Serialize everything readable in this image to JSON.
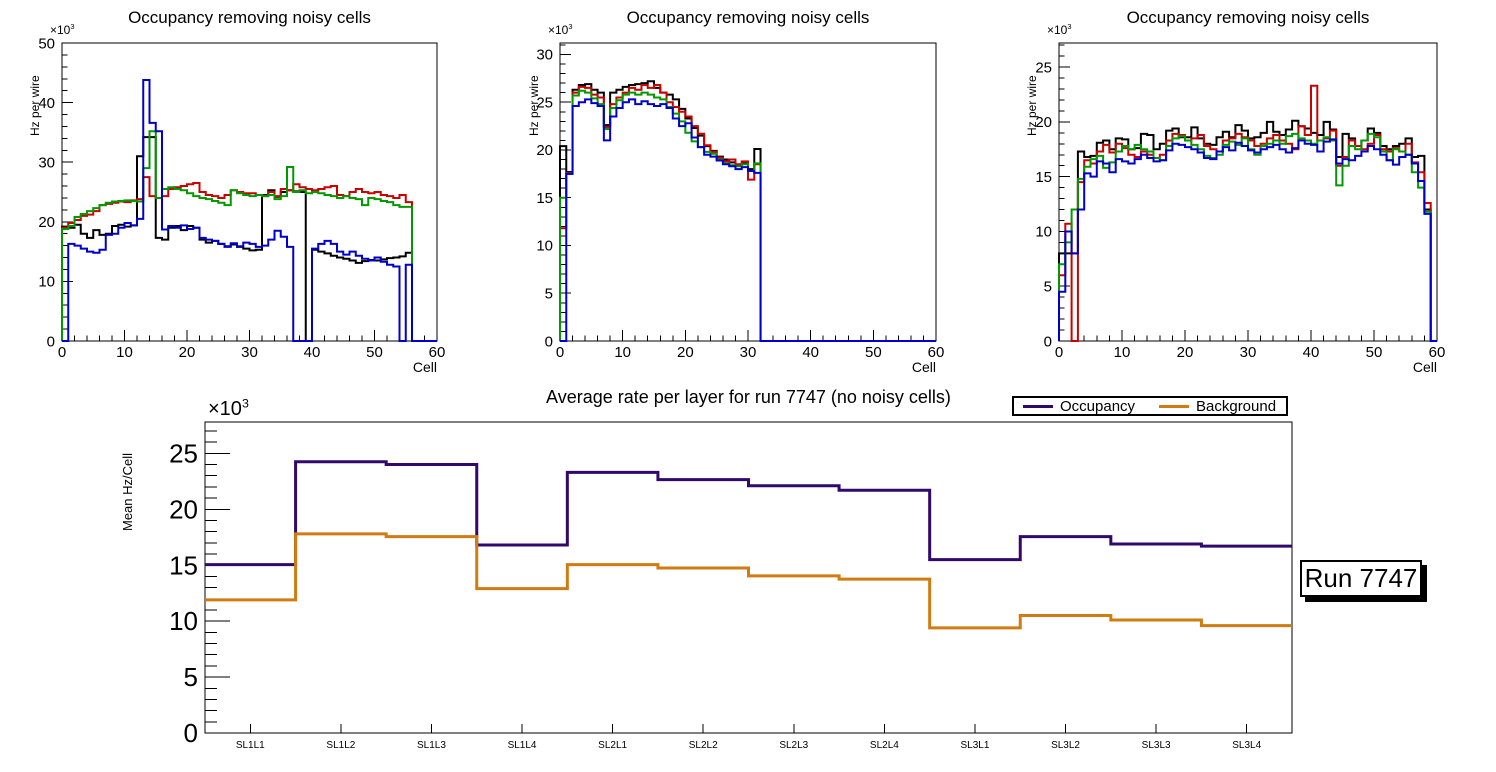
{
  "canvas": {
    "background": "#ffffff"
  },
  "annotations": {
    "run_label": "Run 7747"
  },
  "chart_data": [
    {
      "type": "bar",
      "subtype": "step-histogram-outline",
      "title": "Occupancy removing noisy cells",
      "xlabel": "Cell",
      "ylabel": "Hz per wire",
      "exponent": {
        "base": "×10",
        "sup": "3"
      },
      "xlim": [
        0,
        60
      ],
      "ylim": [
        0,
        50
      ],
      "x_major_step": 10,
      "x_minor_step": 2,
      "y_major_step": 10,
      "y_minor_step": 2,
      "value_unit": "×10³ Hz per wire",
      "grid": "off",
      "legend_position": "none",
      "series": [
        {
          "name": "black",
          "color": "#000000",
          "values": [
            19.2,
            19.0,
            19.5,
            18.0,
            17.3,
            18.6,
            17.8,
            18.0,
            19.3,
            19.5,
            19.2,
            19.4,
            31.0,
            34.2,
            34.2,
            17.3,
            17.0,
            19.0,
            19.3,
            18.6,
            19.3,
            19.0,
            17.0,
            16.5,
            16.8,
            16.3,
            15.9,
            16.2,
            15.8,
            15.5,
            15.2,
            15.3,
            24.5,
            25.3,
            24.2,
            25.0,
            25.3,
            25.1,
            25.0,
            0,
            15.3,
            15.0,
            14.7,
            14.3,
            14.0,
            13.8,
            13.5,
            13.1,
            13.4,
            13.6,
            13.5,
            13.7,
            13.9,
            14.0,
            14.2,
            14.8,
            0,
            0,
            0,
            0
          ]
        },
        {
          "name": "red",
          "color": "#cc0000",
          "values": [
            19.0,
            19.8,
            20.3,
            21.0,
            21.2,
            21.8,
            22.8,
            23.0,
            23.2,
            23.4,
            23.3,
            23.6,
            23.8,
            27.5,
            24.3,
            24.0,
            24.3,
            25.5,
            25.8,
            26.0,
            26.3,
            26.5,
            25.0,
            24.5,
            24.3,
            24.0,
            24.5,
            25.3,
            25.0,
            24.8,
            24.8,
            24.5,
            24.3,
            25.0,
            24.3,
            25.5,
            25.3,
            26.3,
            25.8,
            25.5,
            25.3,
            25.5,
            25.8,
            26.0,
            24.5,
            24.3,
            25.0,
            25.5,
            25.0,
            24.8,
            25.0,
            24.5,
            24.3,
            24.0,
            24.5,
            23.3,
            0,
            0,
            0,
            0
          ]
        },
        {
          "name": "green",
          "color": "#009900",
          "values": [
            18.8,
            19.3,
            20.8,
            21.3,
            21.8,
            22.3,
            22.8,
            23.2,
            23.4,
            23.5,
            23.6,
            23.5,
            23.4,
            29.0,
            35.2,
            24.0,
            25.5,
            25.8,
            25.5,
            25.3,
            24.8,
            24.3,
            24.0,
            23.8,
            23.5,
            23.2,
            22.8,
            25.3,
            24.8,
            24.5,
            24.3,
            24.5,
            24.3,
            24.5,
            23.8,
            24.3,
            29.2,
            25.0,
            25.3,
            24.8,
            25.0,
            24.8,
            24.5,
            24.3,
            24.0,
            24.3,
            24.0,
            23.8,
            22.8,
            24.0,
            23.8,
            23.5,
            23.3,
            22.8,
            22.5,
            22.5,
            0,
            0,
            0,
            0
          ]
        },
        {
          "name": "blue",
          "color": "#0000cc",
          "values": [
            0,
            16.3,
            16.0,
            15.5,
            15.0,
            14.8,
            15.3,
            17.8,
            18.0,
            19.0,
            19.8,
            19.4,
            20.5,
            43.8,
            36.6,
            35.2,
            18.7,
            19.3,
            19.0,
            19.4,
            18.8,
            19.0,
            17.3,
            17.0,
            16.8,
            16.3,
            15.8,
            16.4,
            15.9,
            16.5,
            16.3,
            15.8,
            16.0,
            17.0,
            18.5,
            17.5,
            15.8,
            0,
            0,
            0,
            15.5,
            16.3,
            16.8,
            16.3,
            15.0,
            14.5,
            15.0,
            14.3,
            13.8,
            13.5,
            14.0,
            13.3,
            12.8,
            12.5,
            0,
            12.8,
            0,
            0,
            0,
            0
          ]
        }
      ]
    },
    {
      "type": "bar",
      "subtype": "step-histogram-outline",
      "title": "Occupancy removing noisy cells",
      "xlabel": "Cell",
      "ylabel": "Hz per wire",
      "exponent": {
        "base": "×10",
        "sup": "3"
      },
      "xlim": [
        0,
        60
      ],
      "ylim": [
        0,
        31.2
      ],
      "x_major_step": 10,
      "x_minor_step": 2,
      "y_major_step": 5,
      "y_minor_step": 1,
      "value_unit": "×10³ Hz per wire",
      "grid": "off",
      "legend_position": "none",
      "series": [
        {
          "name": "black",
          "color": "#000000",
          "values": [
            20.4,
            17.7,
            26.3,
            26.8,
            26.9,
            26.3,
            26.0,
            22.6,
            26.0,
            26.3,
            26.6,
            26.8,
            26.9,
            27.0,
            27.2,
            26.5,
            26.0,
            25.8,
            25.3,
            24.3,
            23.3,
            22.3,
            21.5,
            20.4,
            19.9,
            19.3,
            19.0,
            18.7,
            18.4,
            18.6,
            18.0,
            20.1,
            0,
            0,
            0,
            0,
            0,
            0,
            0,
            0,
            0,
            0,
            0,
            0,
            0,
            0,
            0,
            0,
            0,
            0,
            0,
            0,
            0,
            0,
            0,
            0,
            0,
            0,
            0,
            0
          ]
        },
        {
          "name": "red",
          "color": "#cc0000",
          "values": [
            11.8,
            17.6,
            26.0,
            26.6,
            26.5,
            25.8,
            25.5,
            22.4,
            24.8,
            25.5,
            26.0,
            26.5,
            26.3,
            26.8,
            26.5,
            26.8,
            26.0,
            25.0,
            24.5,
            24.0,
            23.5,
            22.5,
            21.7,
            20.5,
            19.8,
            19.2,
            18.8,
            19.0,
            18.5,
            18.8,
            16.9,
            18.5,
            0,
            0,
            0,
            0,
            0,
            0,
            0,
            0,
            0,
            0,
            0,
            0,
            0,
            0,
            0,
            0,
            0,
            0,
            0,
            0,
            0,
            0,
            0,
            0,
            0,
            0,
            0,
            0
          ]
        },
        {
          "name": "green",
          "color": "#009900",
          "values": [
            15.0,
            17.5,
            25.7,
            26.2,
            26.0,
            25.4,
            24.8,
            22.2,
            24.4,
            25.2,
            25.8,
            26.0,
            25.8,
            26.0,
            25.8,
            25.5,
            25.3,
            24.5,
            23.8,
            23.0,
            21.8,
            20.9,
            20.3,
            19.8,
            19.6,
            19.0,
            18.6,
            18.4,
            18.3,
            18.5,
            17.8,
            18.6,
            0,
            0,
            0,
            0,
            0,
            0,
            0,
            0,
            0,
            0,
            0,
            0,
            0,
            0,
            0,
            0,
            0,
            0,
            0,
            0,
            0,
            0,
            0,
            0,
            0,
            0,
            0,
            0
          ]
        },
        {
          "name": "blue",
          "color": "#0000cc",
          "values": [
            0,
            17.5,
            24.6,
            25.0,
            25.3,
            24.9,
            24.6,
            21.0,
            23.5,
            24.4,
            25.0,
            25.3,
            24.8,
            25.1,
            24.8,
            24.6,
            24.8,
            24.4,
            23.3,
            22.5,
            22.8,
            21.3,
            20.3,
            19.5,
            19.3,
            18.9,
            18.5,
            18.3,
            18.0,
            18.2,
            17.8,
            17.6,
            0,
            0,
            0,
            0,
            0,
            0,
            0,
            0,
            0,
            0,
            0,
            0,
            0,
            0,
            0,
            0,
            0,
            0,
            0,
            0,
            0,
            0,
            0,
            0,
            0,
            0,
            0,
            0
          ]
        }
      ]
    },
    {
      "type": "bar",
      "subtype": "step-histogram-outline",
      "title": "Occupancy removing noisy cells",
      "xlabel": "Cell",
      "ylabel": "Hz per wire",
      "exponent": {
        "base": "×10",
        "sup": "3"
      },
      "xlim": [
        0,
        60
      ],
      "ylim": [
        0,
        27.2
      ],
      "x_major_step": 10,
      "x_minor_step": 2,
      "y_major_step": 5,
      "y_minor_step": 1,
      "value_unit": "×10³ Hz per wire",
      "grid": "off",
      "legend_position": "none",
      "series": [
        {
          "name": "black",
          "color": "#000000",
          "values": [
            8.0,
            8.0,
            8.0,
            17.3,
            16.8,
            16.9,
            18.1,
            18.3,
            17.5,
            18.5,
            18.4,
            17.5,
            17.6,
            18.9,
            18.8,
            17.5,
            18.0,
            19.2,
            19.4,
            18.6,
            18.6,
            19.5,
            18.5,
            18.0,
            17.9,
            18.6,
            19.1,
            18.6,
            19.7,
            19.2,
            18.5,
            18.6,
            19.0,
            20.0,
            19.1,
            18.8,
            19.3,
            20.1,
            19.6,
            19.4,
            19.0,
            18.8,
            20.0,
            19.3,
            16.8,
            18.9,
            18.5,
            17.8,
            18.3,
            19.4,
            19.0,
            17.8,
            17.5,
            17.8,
            18.0,
            18.5,
            16.8,
            16.9,
            12.0,
            0
          ]
        },
        {
          "name": "red",
          "color": "#cc0000",
          "values": [
            6.0,
            10.7,
            0,
            14.5,
            16.5,
            16.2,
            17.3,
            17.9,
            17.2,
            18.0,
            17.6,
            17.0,
            16.8,
            17.3,
            17.0,
            16.7,
            17.0,
            18.3,
            18.9,
            18.8,
            18.3,
            18.5,
            18.8,
            17.8,
            17.5,
            17.3,
            18.3,
            18.5,
            18.9,
            18.6,
            18.3,
            17.8,
            18.0,
            18.5,
            18.8,
            18.3,
            18.0,
            17.5,
            19.6,
            18.8,
            23.3,
            18.3,
            18.5,
            19.2,
            16.0,
            16.8,
            18.3,
            17.8,
            17.5,
            18.0,
            18.8,
            17.5,
            17.3,
            17.6,
            17.3,
            18.0,
            16.3,
            15.4,
            12.6,
            0
          ]
        },
        {
          "name": "green",
          "color": "#009900",
          "values": [
            7.0,
            9.0,
            12.0,
            14.8,
            15.9,
            16.6,
            16.9,
            15.8,
            16.3,
            17.3,
            17.8,
            17.5,
            17.9,
            17.5,
            17.3,
            16.7,
            16.5,
            17.8,
            18.5,
            18.7,
            18.3,
            17.9,
            17.5,
            16.9,
            16.7,
            17.0,
            17.9,
            18.2,
            17.9,
            18.5,
            17.5,
            17.0,
            17.8,
            18.0,
            18.3,
            18.0,
            18.7,
            18.9,
            18.5,
            18.3,
            18.0,
            18.3,
            18.6,
            18.3,
            14.2,
            16.0,
            17.8,
            17.5,
            18.3,
            18.9,
            18.6,
            17.3,
            16.5,
            17.5,
            17.3,
            17.0,
            15.4,
            14.0,
            11.8,
            0
          ]
        },
        {
          "name": "blue",
          "color": "#0000cc",
          "values": [
            4.5,
            10.0,
            8.0,
            12.0,
            15.3,
            15.0,
            16.4,
            16.2,
            15.4,
            16.6,
            16.4,
            16.2,
            16.6,
            17.0,
            16.7,
            16.4,
            16.5,
            17.4,
            18.0,
            17.9,
            17.7,
            17.5,
            17.2,
            16.7,
            16.6,
            17.3,
            17.7,
            17.4,
            18.1,
            17.8,
            17.4,
            17.2,
            17.5,
            17.7,
            17.9,
            17.5,
            17.2,
            17.6,
            18.3,
            18.0,
            17.9,
            17.3,
            18.2,
            18.4,
            16.2,
            16.6,
            16.5,
            16.9,
            17.3,
            17.8,
            17.5,
            17.0,
            16.5,
            16.1,
            16.8,
            17.0,
            16.2,
            14.6,
            11.6,
            0
          ]
        }
      ]
    },
    {
      "type": "line",
      "subtype": "category-step",
      "title": "Average rate per layer for run 7747 (no noisy cells)",
      "xlabel": "",
      "ylabel": "Mean Hz/Cell",
      "exponent": {
        "base": "×10",
        "sup": "3"
      },
      "categories": [
        "SL1L1",
        "SL1L2",
        "SL1L3",
        "SL1L4",
        "SL2L1",
        "SL2L2",
        "SL2L3",
        "SL2L4",
        "SL3L1",
        "SL3L2",
        "SL3L3",
        "SL3L4"
      ],
      "ylim": [
        0,
        27.8
      ],
      "y_major_step": 5,
      "y_minor_step": 1,
      "value_unit": "×10³ Mean Hz/Cell",
      "grid": "off",
      "legend_position": "top-right-outside",
      "series": [
        {
          "name": "Occupancy",
          "color": "#32096b",
          "values": [
            15.05,
            24.25,
            24.0,
            16.8,
            23.3,
            22.65,
            22.1,
            21.7,
            15.5,
            17.55,
            16.9,
            16.7
          ]
        },
        {
          "name": "Background",
          "color": "#d07c10",
          "values": [
            11.9,
            17.8,
            17.55,
            12.9,
            15.05,
            14.75,
            14.05,
            13.75,
            9.4,
            10.5,
            10.1,
            9.6
          ]
        }
      ]
    }
  ]
}
